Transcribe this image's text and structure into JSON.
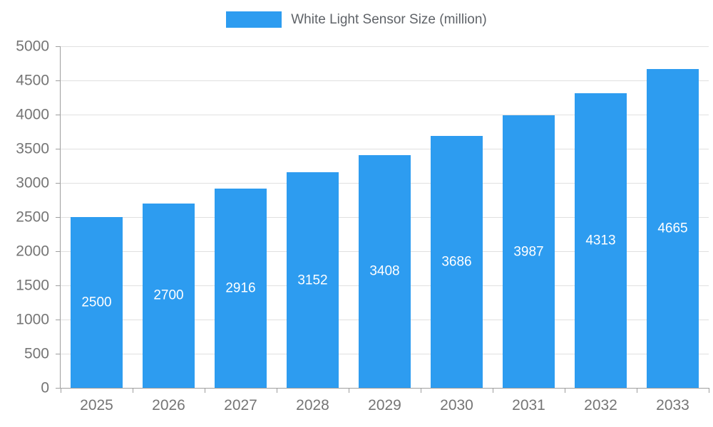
{
  "chart_data": {
    "type": "bar",
    "title": "White Light Sensor Size (million)",
    "categories": [
      "2025",
      "2026",
      "2027",
      "2028",
      "2029",
      "2030",
      "2031",
      "2032",
      "2033"
    ],
    "values": [
      2500,
      2700,
      2916,
      3152,
      3408,
      3686,
      3987,
      4313,
      4665
    ],
    "xlabel": "",
    "ylabel": "",
    "ylim": [
      0,
      5000
    ],
    "ytick_step": 500,
    "grid": true,
    "legend_position": "top-center",
    "bar_color": "#2d9cf0",
    "bar_label_color": "#ffffff",
    "axis_text_color": "#757575",
    "grid_color": "#e0e0e0",
    "axis_line_color": "#9e9e9e"
  }
}
